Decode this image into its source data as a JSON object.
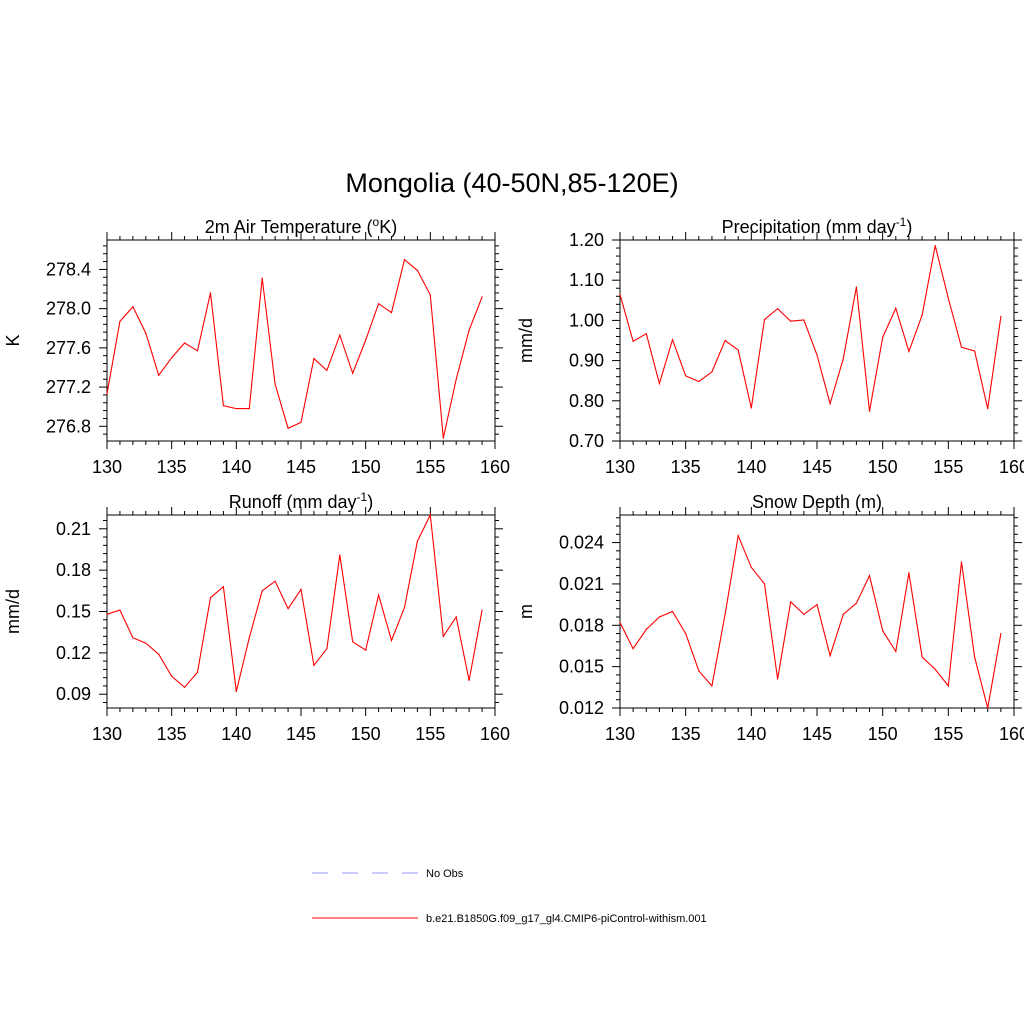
{
  "title": "Mongolia (40-50N,85-120E)",
  "legend": {
    "entries": [
      {
        "label": "No Obs",
        "color": "#9999ff",
        "dashed": true
      },
      {
        "label": "b.e21.B1850G.f09_g17_gl4.CMIP6-piControl-withism.001",
        "color": "#ff0000",
        "dashed": false
      }
    ]
  },
  "chart_data": [
    {
      "type": "line",
      "title": "2m Air Temperature (",
      "title_sup": "o",
      "title_after": "K)",
      "ylabel": "K",
      "xlim": [
        130,
        160
      ],
      "ylim": [
        276.65,
        278.7
      ],
      "xticks": [
        "130",
        "135",
        "140",
        "145",
        "150",
        "155",
        "160"
      ],
      "yticks": [
        "276.8",
        "277.2",
        "277.6",
        "278.0",
        "278.4"
      ],
      "ytick_values": [
        276.8,
        277.2,
        277.6,
        278.0,
        278.4
      ],
      "series": [
        {
          "color": "#ff0000",
          "x": [
            130,
            131,
            132,
            133,
            134,
            135,
            136,
            137,
            138,
            139,
            140,
            141,
            142,
            143,
            144,
            145,
            146,
            147,
            148,
            149,
            150,
            151,
            152,
            153,
            154,
            155,
            156,
            157,
            158,
            159
          ],
          "y": [
            277.13,
            277.87,
            278.02,
            277.75,
            277.32,
            277.5,
            277.65,
            277.57,
            278.16,
            277.01,
            276.98,
            276.98,
            278.31,
            277.23,
            276.78,
            276.84,
            277.49,
            277.37,
            277.73,
            277.34,
            277.68,
            278.05,
            277.96,
            278.5,
            278.39,
            278.14,
            276.68,
            277.28,
            277.78,
            278.12
          ]
        }
      ]
    },
    {
      "type": "line",
      "title": "Precipitation (mm day",
      "title_sup": "-1",
      "title_after": ")",
      "ylabel": "mm/d",
      "xlim": [
        130,
        160
      ],
      "ylim": [
        0.7,
        1.2
      ],
      "xticks": [
        "130",
        "135",
        "140",
        "145",
        "150",
        "155",
        "160"
      ],
      "yticks": [
        "0.70",
        "0.80",
        "0.90",
        "1.00",
        "1.10",
        "1.20"
      ],
      "ytick_values": [
        0.7,
        0.8,
        0.9,
        1.0,
        1.1,
        1.2
      ],
      "series": [
        {
          "color": "#ff0000",
          "x": [
            130,
            131,
            132,
            133,
            134,
            135,
            136,
            137,
            138,
            139,
            140,
            141,
            142,
            143,
            144,
            145,
            146,
            147,
            148,
            149,
            150,
            151,
            152,
            153,
            154,
            155,
            156,
            157,
            158,
            159
          ],
          "y": [
            1.065,
            0.948,
            0.967,
            0.843,
            0.952,
            0.862,
            0.848,
            0.872,
            0.95,
            0.926,
            0.782,
            1.002,
            1.029,
            0.998,
            1.001,
            0.914,
            0.793,
            0.905,
            1.083,
            0.774,
            0.958,
            1.03,
            0.923,
            1.013,
            1.186,
            1.055,
            0.933,
            0.924,
            0.78,
            1.01
          ]
        }
      ]
    },
    {
      "type": "line",
      "title": "Runoff (mm day",
      "title_sup": "-1",
      "title_after": ")",
      "ylabel": "mm/d",
      "xlim": [
        130,
        160
      ],
      "ylim": [
        0.08,
        0.22
      ],
      "xticks": [
        "130",
        "135",
        "140",
        "145",
        "150",
        "155",
        "160"
      ],
      "yticks": [
        "0.09",
        "0.12",
        "0.15",
        "0.18",
        "0.21"
      ],
      "ytick_values": [
        0.09,
        0.12,
        0.15,
        0.18,
        0.21
      ],
      "series": [
        {
          "color": "#ff0000",
          "x": [
            130,
            131,
            132,
            133,
            134,
            135,
            136,
            137,
            138,
            139,
            140,
            141,
            142,
            143,
            144,
            145,
            146,
            147,
            148,
            149,
            150,
            151,
            152,
            153,
            154,
            155,
            156,
            157,
            158,
            159
          ],
          "y": [
            0.148,
            0.151,
            0.131,
            0.127,
            0.119,
            0.103,
            0.095,
            0.106,
            0.16,
            0.168,
            0.092,
            0.131,
            0.165,
            0.172,
            0.152,
            0.166,
            0.111,
            0.123,
            0.191,
            0.128,
            0.122,
            0.162,
            0.129,
            0.153,
            0.201,
            0.22,
            0.132,
            0.146,
            0.1,
            0.151
          ]
        }
      ]
    },
    {
      "type": "line",
      "title": "Snow Depth (m)",
      "title_sup": "",
      "title_after": "",
      "ylabel": "m",
      "xlim": [
        130,
        160
      ],
      "ylim": [
        0.012,
        0.026
      ],
      "xticks": [
        "130",
        "135",
        "140",
        "145",
        "150",
        "155",
        "160"
      ],
      "yticks": [
        "0.012",
        "0.015",
        "0.018",
        "0.021",
        "0.024"
      ],
      "ytick_values": [
        0.012,
        0.015,
        0.018,
        0.021,
        0.024
      ],
      "series": [
        {
          "color": "#ff0000",
          "x": [
            130,
            131,
            132,
            133,
            134,
            135,
            136,
            137,
            138,
            139,
            140,
            141,
            142,
            143,
            144,
            145,
            146,
            147,
            148,
            149,
            150,
            151,
            152,
            153,
            154,
            155,
            156,
            157,
            158,
            159
          ],
          "y": [
            0.0182,
            0.0163,
            0.0177,
            0.0186,
            0.019,
            0.0174,
            0.0147,
            0.0136,
            0.0188,
            0.0245,
            0.0222,
            0.021,
            0.0141,
            0.0197,
            0.0188,
            0.0195,
            0.0158,
            0.0188,
            0.0196,
            0.0216,
            0.0176,
            0.0161,
            0.0218,
            0.0157,
            0.0148,
            0.0136,
            0.0226,
            0.0157,
            0.012,
            0.0174
          ]
        }
      ]
    }
  ]
}
